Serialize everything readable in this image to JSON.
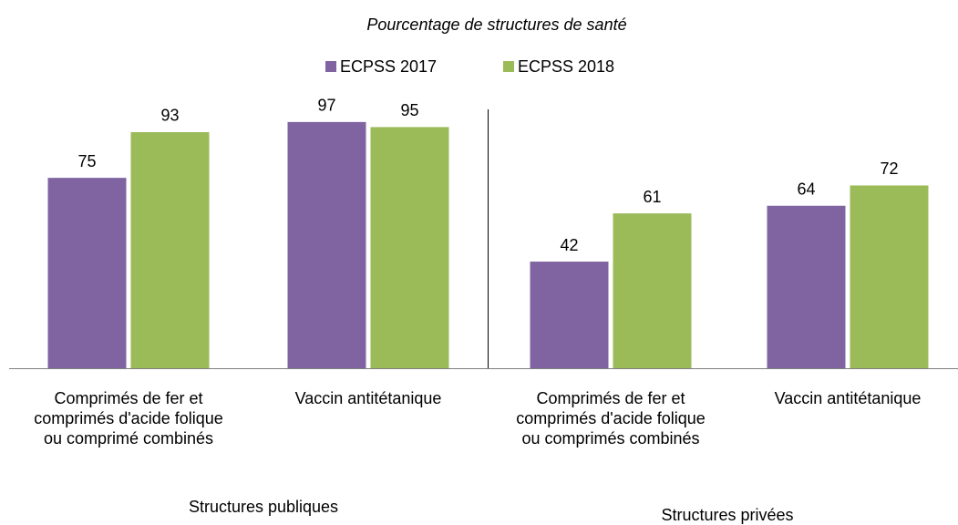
{
  "chart_data": {
    "type": "bar",
    "title": "Pourcentage de structures de santé",
    "categories": [
      "Comprimés de fer et comprimés d'acide folique ou comprimé combinés",
      "Vaccin antitétanique",
      "Comprimés de fer et comprimés d'acide folique ou comprimés combinés",
      "Vaccin antitétanique"
    ],
    "group_labels": [
      "Structures publiques",
      "Structures privées"
    ],
    "series": [
      {
        "name": "ECPSS 2017",
        "color": "#8064a2",
        "values": [
          75,
          97,
          42,
          64
        ]
      },
      {
        "name": "ECPSS 2018",
        "color": "#9bbb59",
        "values": [
          93,
          95,
          61,
          72
        ]
      }
    ]
  }
}
